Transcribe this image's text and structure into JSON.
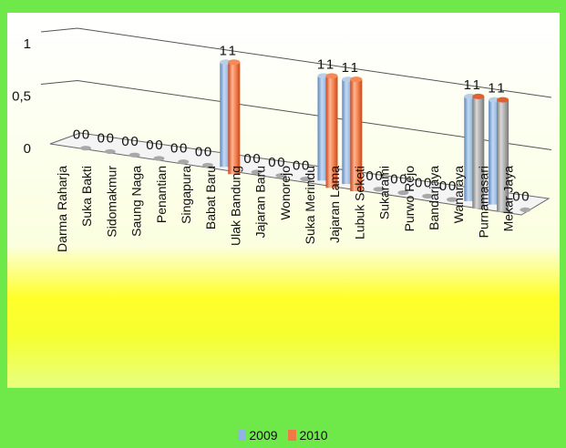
{
  "chart_data": {
    "type": "bar",
    "categories": [
      "Darma Raharja",
      "Suka Bakti",
      "Sidomakmur",
      "Saung Naga",
      "Penantian",
      "Singapura",
      "Babat Baru",
      "Ulak Bandung",
      "Jajaran Baru",
      "Wonorejo",
      "Suka Merindu",
      "Jajaran Lama",
      "Lubuk Seketi",
      "Sukarami",
      "Purwo Rejo",
      "Bandarjaya",
      "Wanaraya",
      "Purnamasari",
      "Mekar Jaya"
    ],
    "series": [
      {
        "name": "2009",
        "color": "#8fb4e0",
        "values": [
          0,
          0,
          0,
          0,
          0,
          0,
          1,
          0,
          0,
          0,
          1,
          1,
          0,
          0,
          0,
          0,
          1,
          1,
          0
        ]
      },
      {
        "name": "2010",
        "color": "#f07a45",
        "values": [
          0,
          0,
          0,
          0,
          0,
          0,
          1,
          0,
          0,
          0,
          1,
          1,
          0,
          0,
          0,
          0,
          1,
          1,
          0
        ]
      }
    ],
    "y_ticks": [
      "0",
      "0,5",
      "1"
    ],
    "ylim": [
      0,
      1
    ],
    "legend_position": "bottom"
  },
  "colors": {
    "background": "#6fe84a",
    "plot_top": "#ffffff",
    "plot_bottom": "#f3ff22",
    "yellow_band": "#ffff00"
  }
}
